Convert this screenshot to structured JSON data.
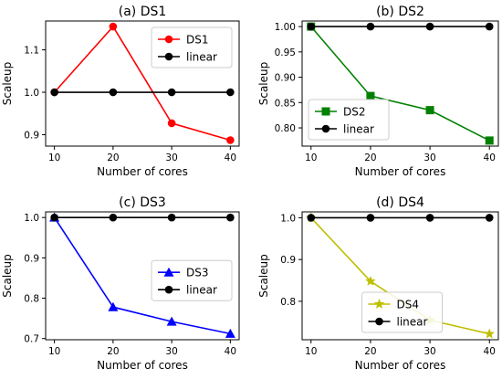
{
  "chart_data": [
    {
      "type": "line",
      "title": "(a) DS1",
      "xlabel": "Number of cores",
      "ylabel": "Scaleup",
      "x": [
        10,
        20,
        30,
        40
      ],
      "x_ticks": [
        "10",
        "20",
        "30",
        "40"
      ],
      "y_ticks": [
        {
          "value": 0.9,
          "label": "0.9"
        },
        {
          "value": 1.0,
          "label": "1.0"
        },
        {
          "value": 1.1,
          "label": "1.1"
        }
      ],
      "xlim": [
        8.5,
        41.5
      ],
      "ylim": [
        0.873,
        1.168
      ],
      "legend_position": "top-right",
      "series": [
        {
          "name": "DS1",
          "values": [
            1.0,
            1.155,
            0.927,
            0.887
          ],
          "color": "#ff0000",
          "marker": "circle"
        },
        {
          "name": "linear",
          "values": [
            1.0,
            1.0,
            1.0,
            1.0
          ],
          "color": "#000000",
          "marker": "circle"
        }
      ]
    },
    {
      "type": "line",
      "title": "(b) DS2",
      "xlabel": "Number of cores",
      "ylabel": "Scaleup",
      "x": [
        10,
        20,
        30,
        40
      ],
      "x_ticks": [
        "10",
        "20",
        "30",
        "40"
      ],
      "y_ticks": [
        {
          "value": 0.8,
          "label": "0.80"
        },
        {
          "value": 0.85,
          "label": "0.85"
        },
        {
          "value": 0.9,
          "label": "0.90"
        },
        {
          "value": 0.95,
          "label": "0.95"
        },
        {
          "value": 1.0,
          "label": "1.00"
        }
      ],
      "xlim": [
        8.5,
        41.5
      ],
      "ylim": [
        0.764,
        1.011
      ],
      "legend_position": "lower-left",
      "series": [
        {
          "name": "DS2",
          "values": [
            1.0,
            0.863,
            0.835,
            0.775
          ],
          "color": "#008000",
          "marker": "square"
        },
        {
          "name": "linear",
          "values": [
            1.0,
            1.0,
            1.0,
            1.0
          ],
          "color": "#000000",
          "marker": "circle"
        }
      ]
    },
    {
      "type": "line",
      "title": "(c) DS3",
      "xlabel": "Number of cores",
      "ylabel": "Scaleup",
      "x": [
        10,
        20,
        30,
        40
      ],
      "x_ticks": [
        "10",
        "20",
        "30",
        "40"
      ],
      "y_ticks": [
        {
          "value": 0.7,
          "label": "0.7"
        },
        {
          "value": 0.8,
          "label": "0.8"
        },
        {
          "value": 0.9,
          "label": "0.9"
        },
        {
          "value": 1.0,
          "label": "1.0"
        }
      ],
      "xlim": [
        8.5,
        41.5
      ],
      "ylim": [
        0.697,
        1.014
      ],
      "legend_position": "center-right",
      "series": [
        {
          "name": "DS3",
          "values": [
            1.0,
            0.778,
            0.742,
            0.712
          ],
          "color": "#0000ff",
          "marker": "triangle"
        },
        {
          "name": "linear",
          "values": [
            1.0,
            1.0,
            1.0,
            1.0
          ],
          "color": "#000000",
          "marker": "circle"
        }
      ]
    },
    {
      "type": "line",
      "title": "(d) DS4",
      "xlabel": "Number of cores",
      "ylabel": "Scaleup",
      "x": [
        10,
        20,
        30,
        40
      ],
      "x_ticks": [
        "10",
        "20",
        "30",
        "40"
      ],
      "y_ticks": [
        {
          "value": 0.8,
          "label": "0.8"
        },
        {
          "value": 0.9,
          "label": "0.9"
        },
        {
          "value": 1.0,
          "label": "1.0"
        }
      ],
      "xlim": [
        8.5,
        41.5
      ],
      "ylim": [
        0.708,
        1.014
      ],
      "legend_position": "lower-center",
      "series": [
        {
          "name": "DS4",
          "values": [
            1.0,
            0.848,
            0.755,
            0.722
          ],
          "color": "#bfbf00",
          "marker": "star"
        },
        {
          "name": "linear",
          "values": [
            1.0,
            1.0,
            1.0,
            1.0
          ],
          "color": "#000000",
          "marker": "circle"
        }
      ]
    }
  ]
}
